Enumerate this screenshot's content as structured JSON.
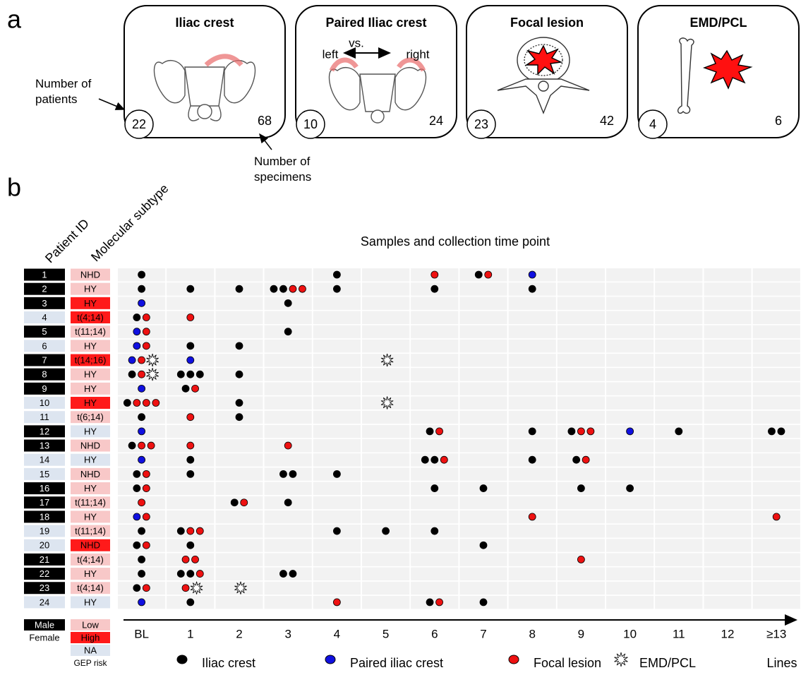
{
  "panel_a": {
    "label": "a",
    "cards": [
      {
        "title": "Iliac crest",
        "patients": 22,
        "specimens": 68
      },
      {
        "title": "Paired Iliac crest",
        "patients": 10,
        "specimens": 24
      },
      {
        "title": "Focal lesion",
        "patients": 23,
        "specimens": 42
      },
      {
        "title": "EMD/PCL",
        "patients": 4,
        "specimens": 6
      }
    ],
    "paired_labels": {
      "left": "left",
      "vs": "vs.",
      "right": "right"
    },
    "annotations": {
      "patients": "Number of patients",
      "specimens": "Number of specimens"
    }
  },
  "panel_b": {
    "label": "b",
    "header_id": "Patient ID",
    "header_subtype": "Molecular subtype",
    "title": "Samples and collection time point",
    "axis_label": "Lines",
    "timepoints": [
      "BL",
      "1",
      "2",
      "3",
      "4",
      "5",
      "6",
      "7",
      "8",
      "9",
      "10",
      "11",
      "12",
      "≥13"
    ],
    "sample_types": [
      {
        "name": "Iliac crest",
        "color": "#000000",
        "shape": "dot"
      },
      {
        "name": "Paired iliac crest",
        "color": "#1010e0",
        "shape": "dot"
      },
      {
        "name": "Focal lesion",
        "color": "#ee1111",
        "shape": "dot"
      },
      {
        "name": "EMD/PCL",
        "color": "#ffffff",
        "shape": "star"
      }
    ],
    "sex": [
      {
        "name": "Male",
        "color": "#000000",
        "text_color": "#ffffff"
      },
      {
        "name": "Female",
        "color": "#dde5f0",
        "text_color": "#000000"
      }
    ],
    "gep_risk": {
      "title": "GEP risk",
      "levels": [
        {
          "name": "Low",
          "color": "#f8c8c8"
        },
        {
          "name": "High",
          "color": "#ff1a1a"
        },
        {
          "name": "NA",
          "color": "#dde5f0"
        }
      ]
    },
    "patients": [
      {
        "id": 1,
        "sex": 0,
        "subtype": "NHD",
        "risk": 0,
        "samples": [
          [
            0
          ],
          [],
          [],
          [],
          [
            0
          ],
          [],
          [
            2
          ],
          [
            0,
            2
          ],
          [
            1
          ],
          [],
          [],
          [],
          [],
          []
        ]
      },
      {
        "id": 2,
        "sex": 0,
        "subtype": "HY",
        "risk": 0,
        "samples": [
          [
            0
          ],
          [
            0
          ],
          [
            0
          ],
          [
            0,
            0,
            2,
            2
          ],
          [
            0
          ],
          [],
          [
            0
          ],
          [],
          [
            0
          ],
          [],
          [],
          [],
          [],
          []
        ]
      },
      {
        "id": 3,
        "sex": 0,
        "subtype": "HY",
        "risk": 1,
        "samples": [
          [
            1
          ],
          [],
          [],
          [
            0
          ],
          [],
          [],
          [],
          [],
          [],
          [],
          [],
          [],
          [],
          []
        ]
      },
      {
        "id": 4,
        "sex": 1,
        "subtype": "t(4;14)",
        "risk": 1,
        "samples": [
          [
            0,
            2
          ],
          [
            2
          ],
          [],
          [],
          [],
          [],
          [],
          [],
          [],
          [],
          [],
          [],
          [],
          []
        ]
      },
      {
        "id": 5,
        "sex": 0,
        "subtype": "t(11;14)",
        "risk": 0,
        "samples": [
          [
            1,
            2
          ],
          [],
          [],
          [
            0
          ],
          [],
          [],
          [],
          [],
          [],
          [],
          [],
          [],
          [],
          []
        ]
      },
      {
        "id": 6,
        "sex": 1,
        "subtype": "HY",
        "risk": 0,
        "samples": [
          [
            1,
            2
          ],
          [
            0
          ],
          [
            0
          ],
          [],
          [],
          [],
          [],
          [],
          [],
          [],
          [],
          [],
          [],
          []
        ]
      },
      {
        "id": 7,
        "sex": 0,
        "subtype": "t(14;16)",
        "risk": 1,
        "samples": [
          [
            1,
            2,
            3
          ],
          [
            1
          ],
          [],
          [],
          [],
          [
            3
          ],
          [],
          [],
          [],
          [],
          [],
          [],
          [],
          []
        ]
      },
      {
        "id": 8,
        "sex": 0,
        "subtype": "HY",
        "risk": 0,
        "samples": [
          [
            0,
            2,
            3
          ],
          [
            0,
            0,
            0
          ],
          [
            0
          ],
          [],
          [],
          [],
          [],
          [],
          [],
          [],
          [],
          [],
          [],
          []
        ]
      },
      {
        "id": 9,
        "sex": 0,
        "subtype": "HY",
        "risk": 0,
        "samples": [
          [
            1
          ],
          [
            0,
            2
          ],
          [],
          [],
          [],
          [],
          [],
          [],
          [],
          [],
          [],
          [],
          [],
          []
        ]
      },
      {
        "id": 10,
        "sex": 1,
        "subtype": "HY",
        "risk": 1,
        "samples": [
          [
            0,
            2,
            2,
            2
          ],
          [],
          [
            0
          ],
          [],
          [],
          [
            3
          ],
          [],
          [],
          [],
          [],
          [],
          [],
          [],
          []
        ]
      },
      {
        "id": 11,
        "sex": 1,
        "subtype": "t(6;14)",
        "risk": 0,
        "samples": [
          [
            0
          ],
          [
            2
          ],
          [
            0
          ],
          [],
          [],
          [],
          [],
          [],
          [],
          [],
          [],
          [],
          [],
          []
        ]
      },
      {
        "id": 12,
        "sex": 0,
        "subtype": "HY",
        "risk": 2,
        "samples": [
          [
            1
          ],
          [],
          [],
          [],
          [],
          [],
          [
            0,
            2
          ],
          [],
          [
            0
          ],
          [
            0,
            2,
            2
          ],
          [
            1
          ],
          [
            0
          ],
          [],
          [
            0,
            0
          ]
        ]
      },
      {
        "id": 13,
        "sex": 0,
        "subtype": "NHD",
        "risk": 0,
        "samples": [
          [
            0,
            2,
            2
          ],
          [
            2
          ],
          [],
          [
            2
          ],
          [],
          [],
          [],
          [],
          [],
          [],
          [],
          [],
          [],
          []
        ]
      },
      {
        "id": 14,
        "sex": 1,
        "subtype": "HY",
        "risk": 2,
        "samples": [
          [
            1
          ],
          [
            0
          ],
          [],
          [],
          [],
          [],
          [
            0,
            0,
            2
          ],
          [],
          [
            0
          ],
          [
            0,
            2
          ],
          [],
          [],
          [],
          []
        ]
      },
      {
        "id": 15,
        "sex": 1,
        "subtype": "NHD",
        "risk": 0,
        "samples": [
          [
            0,
            2
          ],
          [
            0
          ],
          [],
          [
            0,
            0
          ],
          [
            0
          ],
          [],
          [],
          [],
          [],
          [],
          [],
          [],
          [],
          []
        ]
      },
      {
        "id": 16,
        "sex": 0,
        "subtype": "HY",
        "risk": 0,
        "samples": [
          [
            0,
            2
          ],
          [],
          [],
          [],
          [],
          [],
          [
            0
          ],
          [
            0
          ],
          [],
          [
            0
          ],
          [
            0
          ],
          [],
          [],
          []
        ]
      },
      {
        "id": 17,
        "sex": 0,
        "subtype": "t(11;14)",
        "risk": 0,
        "samples": [
          [
            2
          ],
          [],
          [
            0,
            2
          ],
          [
            0
          ],
          [],
          [],
          [],
          [],
          [],
          [],
          [],
          [],
          [],
          []
        ]
      },
      {
        "id": 18,
        "sex": 0,
        "subtype": "HY",
        "risk": 0,
        "samples": [
          [
            1,
            2
          ],
          [],
          [],
          [],
          [],
          [],
          [],
          [],
          [
            2
          ],
          [],
          [],
          [],
          [],
          [
            2
          ]
        ]
      },
      {
        "id": 19,
        "sex": 1,
        "subtype": "t(11;14)",
        "risk": 0,
        "samples": [
          [
            0
          ],
          [
            0,
            2,
            2
          ],
          [],
          [],
          [
            0
          ],
          [
            0
          ],
          [
            0
          ],
          [],
          [],
          [],
          [],
          [],
          [],
          []
        ]
      },
      {
        "id": 20,
        "sex": 1,
        "subtype": "NHD",
        "risk": 1,
        "samples": [
          [
            0,
            2
          ],
          [
            0
          ],
          [],
          [],
          [],
          [],
          [],
          [
            0
          ],
          [],
          [],
          [],
          [],
          [],
          []
        ]
      },
      {
        "id": 21,
        "sex": 0,
        "subtype": "t(4;14)",
        "risk": 0,
        "samples": [
          [
            0
          ],
          [
            2,
            2
          ],
          [],
          [],
          [],
          [],
          [],
          [],
          [],
          [
            2
          ],
          [],
          [],
          [],
          []
        ]
      },
      {
        "id": 22,
        "sex": 0,
        "subtype": "HY",
        "risk": 0,
        "samples": [
          [
            0
          ],
          [
            0,
            0,
            2
          ],
          [],
          [
            0,
            0
          ],
          [],
          [],
          [],
          [],
          [],
          [],
          [],
          [],
          [],
          []
        ]
      },
      {
        "id": 23,
        "sex": 0,
        "subtype": "t(4;14)",
        "risk": 0,
        "samples": [
          [
            0,
            2
          ],
          [
            2,
            3
          ],
          [
            3
          ],
          [],
          [],
          [],
          [],
          [],
          [],
          [],
          [],
          [],
          [],
          []
        ]
      },
      {
        "id": 24,
        "sex": 1,
        "subtype": "HY",
        "risk": 2,
        "samples": [
          [
            1
          ],
          [
            0
          ],
          [],
          [],
          [
            2
          ],
          [],
          [
            0,
            2
          ],
          [
            0
          ],
          [],
          [],
          [],
          [],
          [],
          []
        ]
      }
    ]
  }
}
